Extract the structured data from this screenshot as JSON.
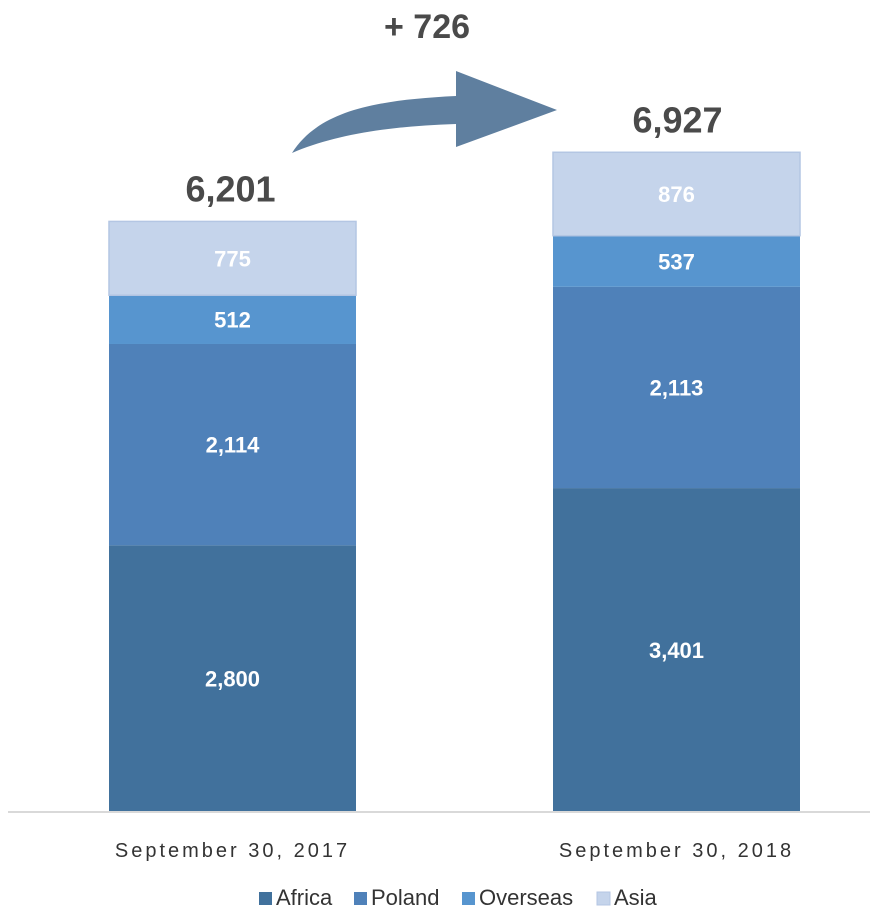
{
  "chart_data": {
    "type": "bar",
    "stacked": true,
    "categories": [
      "September 30, 2017",
      "September 30, 2018"
    ],
    "series": [
      {
        "name": "Africa",
        "values": [
          2800,
          3401
        ],
        "labels": [
          "2,800",
          "3,401"
        ]
      },
      {
        "name": "Poland",
        "values": [
          2114,
          2113
        ],
        "labels": [
          "2,114",
          "2,113"
        ]
      },
      {
        "name": "Overseas",
        "values": [
          512,
          537
        ],
        "labels": [
          "512",
          "537"
        ]
      },
      {
        "name": "Asia",
        "values": [
          775,
          876
        ],
        "labels": [
          "775",
          "876"
        ]
      }
    ],
    "totals": [
      "6,201",
      "6,927"
    ],
    "delta_label": "+ 726",
    "colors": {
      "Africa": "#41719c",
      "Poland": "#4f81b9",
      "Overseas": "#5795cf",
      "Asia": "#c5d4eb",
      "arrow": "#5f7f9f"
    },
    "legend_position": "bottom",
    "grid": false
  }
}
